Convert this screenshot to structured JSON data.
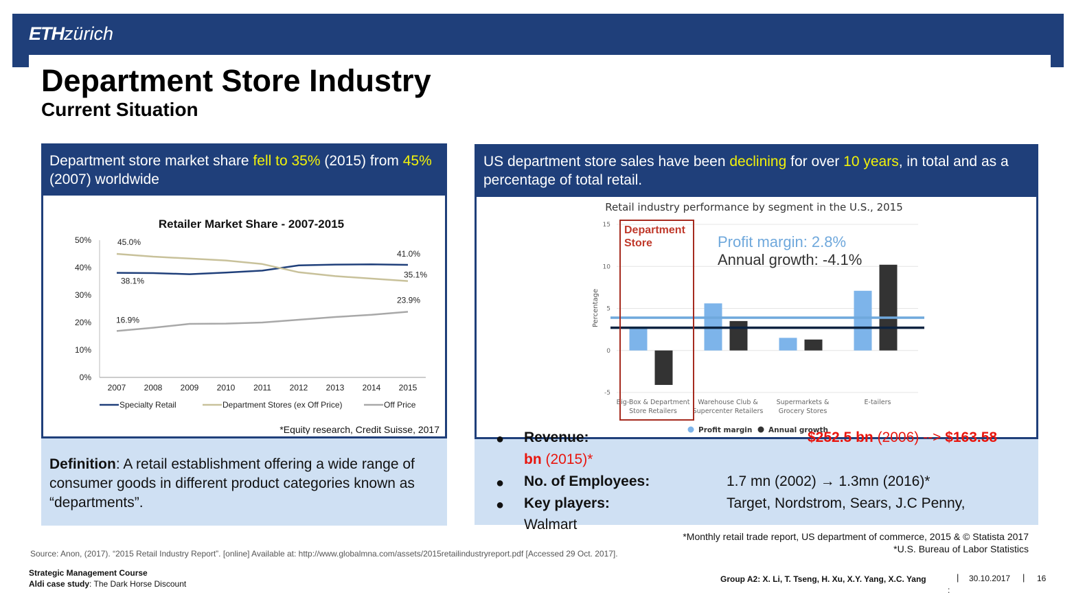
{
  "header": {
    "logo_bold": "ETH",
    "logo_rest": "zürich"
  },
  "slide": {
    "title": "Department Store Industry",
    "subtitle": "Current Situation"
  },
  "left_panel": {
    "headline_part1": "Department store market share ",
    "headline_hl1": "fell to 35%",
    "headline_part2": " (2015) from ",
    "headline_hl2": "45%",
    "headline_part3": " (2007) worldwide",
    "citation": "*Equity research, Credit Suisse, 2017",
    "definition_label": "Definition",
    "definition_text": ": A retail establishment offering a wide range of consumer goods in different product categories known as “departments”."
  },
  "right_panel": {
    "headline_part1": "US department store sales have been ",
    "headline_hl1": "declining",
    "headline_part2": " for over ",
    "headline_hl2": "10 years",
    "headline_part3": ", in total and as a percentage of total retail.",
    "bullet_char": "●",
    "revenue_label": "Revenue:",
    "revenue_value_a": "$252.5 bn",
    "revenue_value_b": " (2006) --> ",
    "revenue_value_c": "$163.58",
    "revenue_value_d": "bn",
    "revenue_value_e": " (2015)*",
    "employees_label": "No. of Employees:",
    "employees_value": "1.7 mn (2002) → 1.3mn (2016)*",
    "players_label": "Key players:",
    "players_value": "Target, Nordstrom, Sears, J.C Penny,",
    "players_value_2": "Walmart",
    "note1": "*Monthly retail trade report, US department of commerce, 2015 & © Statista 2017",
    "note2": "*U.S. Bureau of Labor Statistics"
  },
  "footer": {
    "source": "Source: Anon, (2017). “2015 Retail Industry Report”. [online] Available at: http://www.globalmna.com/assets/2015retailindustryreport.pdf [Accessed 29 Oct. 2017].",
    "course": "Strategic Management Course",
    "case_label": "Aldi case study",
    "case_text": ": The Dark Horse Discount",
    "group": "Group A2: X. Li, T. Tseng, H. Xu, X.Y. Yang, X.C. Yang",
    "sep": "|",
    "date": "30.10.2017",
    "page": "16",
    "stray": ":"
  },
  "chart_data": [
    {
      "type": "line",
      "title": "Retailer Market Share - 2007-2015",
      "x": [
        "2007",
        "2008",
        "2009",
        "2010",
        "2011",
        "2012",
        "2013",
        "2014",
        "2015"
      ],
      "yticks": [
        "0%",
        "10%",
        "20%",
        "30%",
        "40%",
        "50%"
      ],
      "ylim": [
        0,
        50
      ],
      "series": [
        {
          "name": "Specialty Retail",
          "color": "#1f3f7a",
          "values": [
            38.1,
            38.0,
            37.6,
            38.2,
            38.9,
            40.8,
            41.1,
            41.2,
            41.0
          ]
        },
        {
          "name": "Department Stores (ex Off Price)",
          "color": "#c8c19a",
          "values": [
            45.0,
            44.0,
            43.3,
            42.6,
            41.3,
            38.3,
            36.9,
            36.0,
            35.1
          ]
        },
        {
          "name": "Off Price",
          "color": "#a8a8a8",
          "values": [
            16.9,
            18.1,
            19.5,
            19.6,
            20.0,
            21.0,
            22.0,
            22.8,
            23.9
          ]
        }
      ],
      "labels": [
        "45.0%",
        "38.1%",
        "16.9%",
        "41.0%",
        "35.1%",
        "23.9%"
      ],
      "legend": "bottom"
    },
    {
      "type": "bar",
      "title": "Retail industry performance by segment in the U.S., 2015",
      "ylabel": "Percentage",
      "yticks": [
        "15",
        "10",
        "5",
        "0",
        "-5"
      ],
      "ylim": [
        -5,
        15
      ],
      "categories": [
        [
          "Big-Box & Department",
          "Store Retailers"
        ],
        [
          "Warehouse Club &",
          "Supercenter Retailers"
        ],
        [
          "Supermarkets &",
          "Grocery Stores"
        ],
        [
          "E-tailers"
        ]
      ],
      "series": [
        {
          "name": "Profit margin",
          "color": "#7db4ea",
          "values": [
            2.8,
            5.6,
            1.5,
            7.1
          ]
        },
        {
          "name": "Annual growth",
          "color": "#333333",
          "values": [
            -4.1,
            3.5,
            1.3,
            10.2
          ]
        }
      ],
      "reference_lines": [
        {
          "value": 3.9,
          "color": "#6fa8dc"
        },
        {
          "value": 2.7,
          "color": "#0c2340"
        }
      ],
      "highlight_label": [
        "Department",
        "Store"
      ],
      "annotation_margin": "Profit margin: 2.8%",
      "annotation_growth": "Annual growth: -4.1%",
      "legend": "bottom"
    }
  ]
}
